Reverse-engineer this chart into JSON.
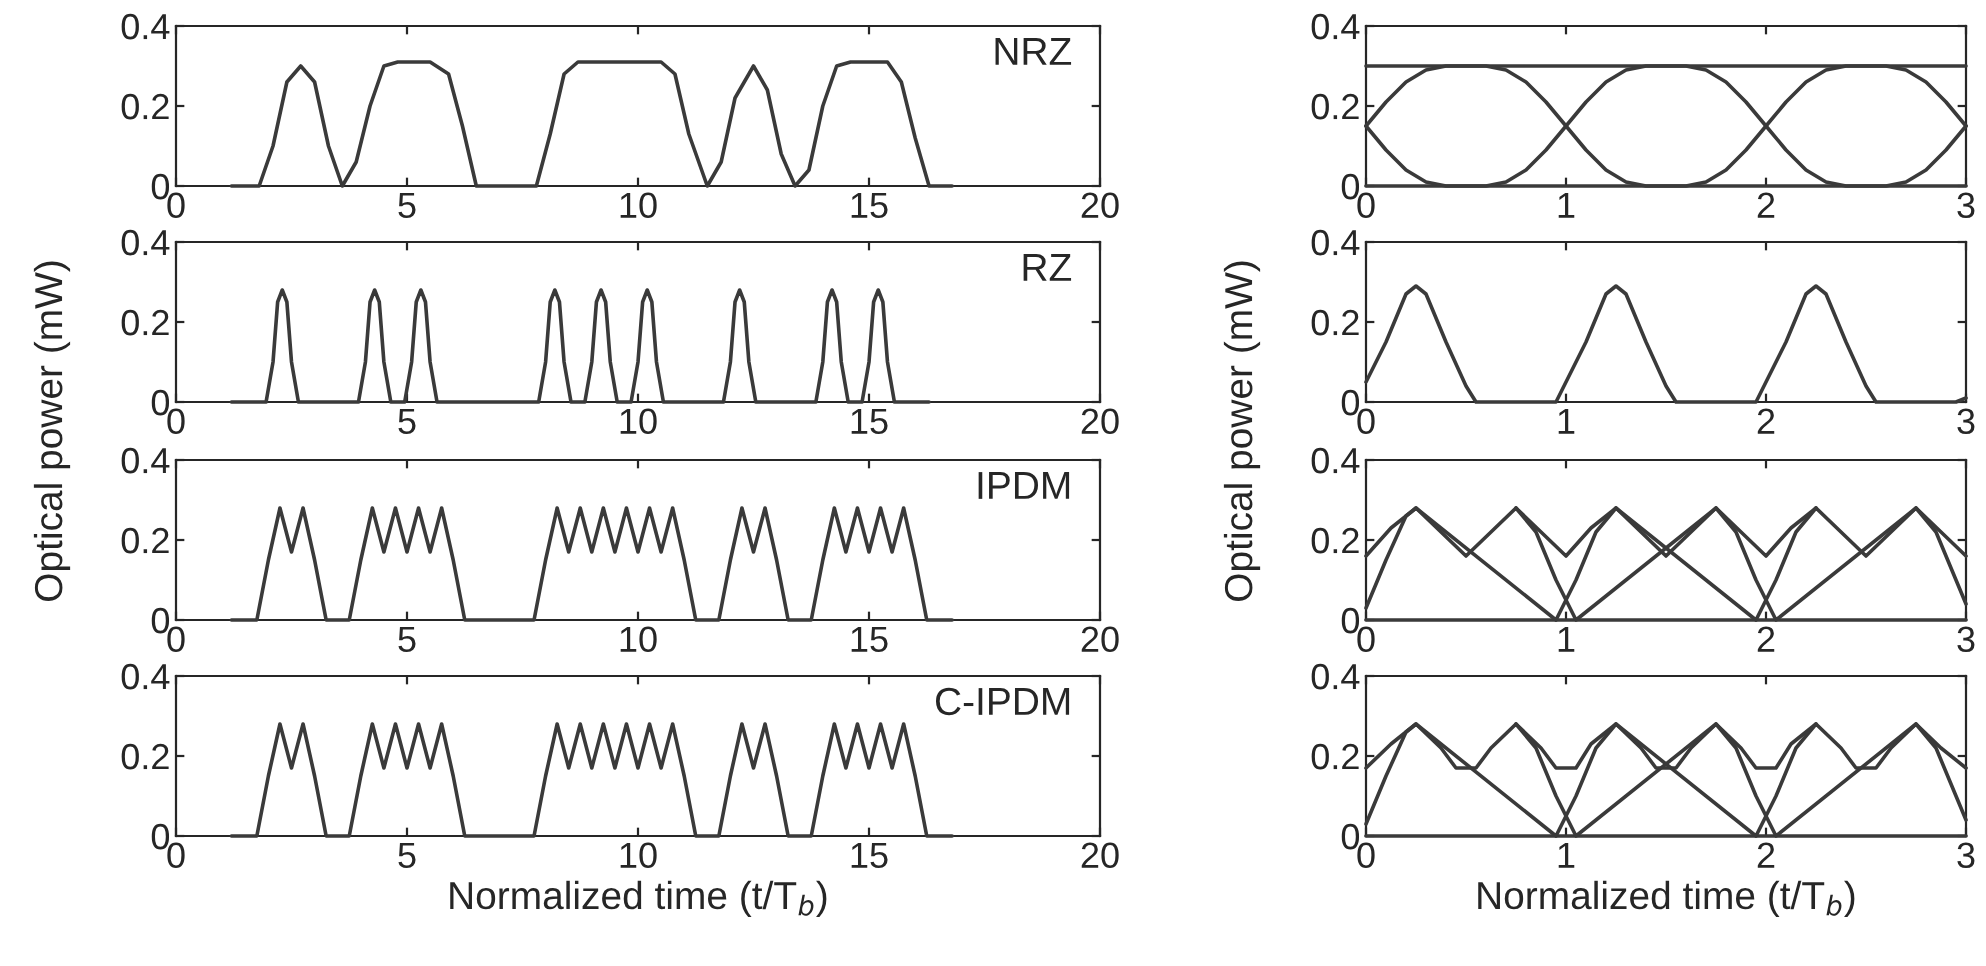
{
  "chart_data": [
    {
      "type": "line",
      "annotations": [
        "NRZ"
      ],
      "ylabel": "Optical power (mW)",
      "xlim": [
        0,
        20
      ],
      "ylim": [
        0,
        0.4
      ],
      "xticks": [
        0,
        5,
        10,
        15,
        20
      ],
      "yticks": [
        0,
        0.2,
        0.4
      ],
      "grid": false,
      "series": [
        {
          "color": "#3a3a3a",
          "x": [
            1.2,
            1.8,
            2.1,
            2.4,
            2.7,
            3.0,
            3.3,
            3.6,
            3.9,
            4.2,
            4.5,
            4.8,
            5.5,
            5.9,
            6.2,
            6.5,
            7.8,
            8.1,
            8.4,
            8.7,
            10.5,
            10.8,
            11.1,
            11.5,
            11.8,
            12.1,
            12.5,
            12.8,
            13.1,
            13.4,
            13.7,
            14.0,
            14.3,
            14.6,
            15.4,
            15.7,
            16.0,
            16.3,
            16.8
          ],
          "values": [
            0,
            0,
            0.1,
            0.26,
            0.3,
            0.26,
            0.1,
            0,
            0.06,
            0.2,
            0.3,
            0.31,
            0.31,
            0.28,
            0.15,
            0,
            0,
            0.13,
            0.28,
            0.31,
            0.31,
            0.28,
            0.13,
            0,
            0.06,
            0.22,
            0.3,
            0.24,
            0.08,
            0,
            0.04,
            0.2,
            0.3,
            0.31,
            0.31,
            0.26,
            0.12,
            0,
            0
          ]
        }
      ]
    },
    {
      "type": "line",
      "annotations": [
        "RZ"
      ],
      "xlim": [
        0,
        20
      ],
      "ylim": [
        0,
        0.4
      ],
      "xticks": [
        0,
        5,
        10,
        15,
        20
      ],
      "yticks": [
        0,
        0.2,
        0.4
      ],
      "grid": false,
      "series": [
        {
          "color": "#3a3a3a",
          "x": [
            1.2,
            1.95,
            2.1,
            2.2,
            2.3,
            2.4,
            2.5,
            2.65,
            3.95,
            4.1,
            4.2,
            4.3,
            4.4,
            4.5,
            4.65,
            4.95,
            5.1,
            5.2,
            5.3,
            5.4,
            5.5,
            5.65,
            7.85,
            8.0,
            8.1,
            8.2,
            8.3,
            8.4,
            8.55,
            8.85,
            9.0,
            9.1,
            9.2,
            9.3,
            9.4,
            9.55,
            9.85,
            10.0,
            10.1,
            10.2,
            10.3,
            10.4,
            10.55,
            11.85,
            12.0,
            12.1,
            12.2,
            12.3,
            12.4,
            12.55,
            13.85,
            14.0,
            14.1,
            14.2,
            14.3,
            14.4,
            14.55,
            14.85,
            15.0,
            15.1,
            15.2,
            15.3,
            15.4,
            15.55,
            16.3
          ],
          "values": [
            0,
            0,
            0.1,
            0.25,
            0.28,
            0.25,
            0.1,
            0,
            0,
            0.1,
            0.25,
            0.28,
            0.25,
            0.1,
            0,
            0,
            0.1,
            0.25,
            0.28,
            0.25,
            0.1,
            0,
            0,
            0.1,
            0.25,
            0.28,
            0.25,
            0.1,
            0,
            0,
            0.1,
            0.25,
            0.28,
            0.25,
            0.1,
            0,
            0,
            0.1,
            0.25,
            0.28,
            0.25,
            0.1,
            0,
            0,
            0.1,
            0.25,
            0.28,
            0.25,
            0.1,
            0,
            0,
            0.1,
            0.25,
            0.28,
            0.25,
            0.1,
            0,
            0,
            0.1,
            0.25,
            0.28,
            0.25,
            0.1,
            0,
            0
          ]
        }
      ]
    },
    {
      "type": "line",
      "annotations": [
        "IPDM"
      ],
      "xlim": [
        0,
        20
      ],
      "ylim": [
        0,
        0.4
      ],
      "xticks": [
        0,
        5,
        10,
        15,
        20
      ],
      "yticks": [
        0,
        0.2,
        0.4
      ],
      "grid": false,
      "series": [
        {
          "color": "#3a3a3a",
          "x": [
            1.2,
            1.75,
            2,
            2.25,
            2.5,
            2.75,
            3,
            3.25,
            3.75,
            4,
            4.25,
            4.5,
            4.75,
            5,
            5.25,
            5.5,
            5.75,
            6,
            6.25,
            7.75,
            8,
            8.25,
            8.5,
            8.75,
            9,
            9.25,
            9.5,
            9.75,
            10,
            10.25,
            10.5,
            10.75,
            11,
            11.25,
            11.75,
            12,
            12.25,
            12.5,
            12.75,
            13,
            13.25,
            13.75,
            14,
            14.25,
            14.5,
            14.75,
            15,
            15.25,
            15.5,
            15.75,
            16,
            16.25,
            16.8
          ],
          "values": [
            0,
            0,
            0.15,
            0.28,
            0.17,
            0.28,
            0.15,
            0,
            0,
            0.15,
            0.28,
            0.17,
            0.28,
            0.17,
            0.28,
            0.17,
            0.28,
            0.15,
            0,
            0,
            0.15,
            0.28,
            0.17,
            0.28,
            0.17,
            0.28,
            0.17,
            0.28,
            0.17,
            0.28,
            0.17,
            0.28,
            0.15,
            0,
            0,
            0.15,
            0.28,
            0.17,
            0.28,
            0.15,
            0,
            0,
            0.15,
            0.28,
            0.17,
            0.28,
            0.17,
            0.28,
            0.17,
            0.28,
            0.15,
            0,
            0
          ]
        }
      ]
    },
    {
      "type": "line",
      "annotations": [
        "C-IPDM"
      ],
      "xlabel": "Normalized time (t/T$_{b}$)",
      "xlim": [
        0,
        20
      ],
      "ylim": [
        0,
        0.4
      ],
      "xticks": [
        0,
        5,
        10,
        15,
        20
      ],
      "yticks": [
        0,
        0.2,
        0.4
      ],
      "grid": false,
      "series": [
        {
          "color": "#3a3a3a",
          "x": [
            1.2,
            1.75,
            2,
            2.25,
            2.5,
            2.75,
            3,
            3.25,
            3.75,
            4,
            4.25,
            4.5,
            4.75,
            5,
            5.25,
            5.5,
            5.75,
            6,
            6.25,
            7.75,
            8,
            8.25,
            8.5,
            8.75,
            9,
            9.25,
            9.5,
            9.75,
            10,
            10.25,
            10.5,
            10.75,
            11,
            11.25,
            11.75,
            12,
            12.25,
            12.5,
            12.75,
            13,
            13.25,
            13.75,
            14,
            14.25,
            14.5,
            14.75,
            15,
            15.25,
            15.5,
            15.75,
            16,
            16.25,
            16.8
          ],
          "values": [
            0,
            0,
            0.15,
            0.28,
            0.17,
            0.28,
            0.15,
            0,
            0,
            0.15,
            0.28,
            0.17,
            0.28,
            0.17,
            0.28,
            0.17,
            0.28,
            0.15,
            0,
            0,
            0.15,
            0.28,
            0.17,
            0.28,
            0.17,
            0.28,
            0.17,
            0.28,
            0.17,
            0.28,
            0.17,
            0.28,
            0.15,
            0,
            0,
            0.15,
            0.28,
            0.17,
            0.28,
            0.15,
            0,
            0,
            0.15,
            0.28,
            0.17,
            0.28,
            0.17,
            0.28,
            0.17,
            0.28,
            0.15,
            0,
            0
          ]
        }
      ]
    },
    {
      "type": "line",
      "ylabel": "Optical power (mW)",
      "xlim": [
        0,
        3
      ],
      "ylim": [
        0,
        0.4
      ],
      "xticks": [
        0,
        1,
        2,
        3
      ],
      "yticks": [
        0,
        0.2,
        0.4
      ],
      "grid": false,
      "series": [
        {
          "color": "#3a3a3a",
          "x": [
            0,
            3
          ],
          "values": [
            0.3,
            0.3
          ]
        },
        {
          "color": "#3a3a3a",
          "x": [
            0,
            3
          ],
          "values": [
            0,
            0
          ]
        },
        {
          "color": "#3a3a3a",
          "x": [
            0,
            0.1,
            0.2,
            0.3,
            0.4,
            0.5,
            0.6,
            0.7,
            0.8,
            0.9,
            1,
            1.1,
            1.2,
            1.3,
            1.4,
            1.5,
            1.6,
            1.7,
            1.8,
            1.9,
            2,
            2.1,
            2.2,
            2.3,
            2.4,
            2.5,
            2.6,
            2.7,
            2.8,
            2.9,
            3
          ],
          "values": [
            0.15,
            0.21,
            0.26,
            0.29,
            0.3,
            0.3,
            0.3,
            0.29,
            0.26,
            0.21,
            0.15,
            0.21,
            0.26,
            0.29,
            0.3,
            0.3,
            0.3,
            0.29,
            0.26,
            0.21,
            0.15,
            0.21,
            0.26,
            0.29,
            0.3,
            0.3,
            0.3,
            0.29,
            0.26,
            0.21,
            0.15
          ]
        },
        {
          "color": "#3a3a3a",
          "x": [
            0,
            0.1,
            0.2,
            0.3,
            0.4,
            0.5,
            0.6,
            0.7,
            0.8,
            0.9,
            1,
            1.1,
            1.2,
            1.3,
            1.4,
            1.5,
            1.6,
            1.7,
            1.8,
            1.9,
            2,
            2.1,
            2.2,
            2.3,
            2.4,
            2.5,
            2.6,
            2.7,
            2.8,
            2.9,
            3
          ],
          "values": [
            0.15,
            0.09,
            0.04,
            0.01,
            0,
            0,
            0,
            0.01,
            0.04,
            0.09,
            0.15,
            0.09,
            0.04,
            0.01,
            0,
            0,
            0,
            0.01,
            0.04,
            0.09,
            0.15,
            0.09,
            0.04,
            0.01,
            0,
            0,
            0,
            0.01,
            0.04,
            0.09,
            0.15
          ]
        }
      ]
    },
    {
      "type": "line",
      "xlim": [
        0,
        3
      ],
      "ylim": [
        0,
        0.4
      ],
      "xticks": [
        0,
        1,
        2,
        3
      ],
      "yticks": [
        0,
        0.2,
        0.4
      ],
      "grid": false,
      "series": [
        {
          "color": "#3a3a3a",
          "x": [
            0,
            0.1,
            0.2,
            0.25,
            0.3,
            0.4,
            0.5,
            0.55,
            0.95,
            1,
            1.1,
            1.2,
            1.25,
            1.3,
            1.4,
            1.5,
            1.55,
            1.95,
            2,
            2.1,
            2.2,
            2.25,
            2.3,
            2.4,
            2.5,
            2.55,
            2.95,
            3
          ],
          "values": [
            0.05,
            0.15,
            0.27,
            0.29,
            0.27,
            0.15,
            0.04,
            0,
            0,
            0.05,
            0.15,
            0.27,
            0.29,
            0.27,
            0.15,
            0.04,
            0,
            0,
            0.05,
            0.15,
            0.27,
            0.29,
            0.27,
            0.15,
            0.04,
            0,
            0,
            0.01
          ]
        }
      ]
    },
    {
      "type": "line",
      "xlim": [
        0,
        3
      ],
      "ylim": [
        0,
        0.4
      ],
      "xticks": [
        0,
        1,
        2,
        3
      ],
      "yticks": [
        0,
        0.2,
        0.4
      ],
      "grid": false,
      "series": [
        {
          "color": "#3a3a3a",
          "x": [
            0,
            0.125,
            0.25,
            0.375,
            0.5,
            0.625,
            0.75,
            0.875,
            1,
            1.125,
            1.25,
            1.375,
            1.5,
            1.625,
            1.75,
            1.875,
            2,
            2.125,
            2.25,
            2.375,
            2.5,
            2.625,
            2.75,
            2.875,
            3
          ],
          "values": [
            0.16,
            0.23,
            0.28,
            0.22,
            0.16,
            0.22,
            0.28,
            0.22,
            0.16,
            0.23,
            0.28,
            0.22,
            0.16,
            0.22,
            0.28,
            0.22,
            0.16,
            0.23,
            0.28,
            0.22,
            0.16,
            0.22,
            0.28,
            0.22,
            0.16
          ]
        },
        {
          "color": "#3a3a3a",
          "x": [
            0,
            3
          ],
          "values": [
            0,
            0
          ]
        },
        {
          "color": "#3a3a3a",
          "x": [
            0,
            0.1,
            0.2,
            0.25,
            0.6,
            0.95,
            1.05,
            1.15,
            1.25,
            1.6,
            1.95,
            2.05,
            2.15,
            2.25
          ],
          "values": [
            0.03,
            0.15,
            0.26,
            0.28,
            null,
            0,
            0.1,
            0.22,
            0.28,
            null,
            0,
            0.1,
            0.22,
            0.28
          ]
        },
        {
          "color": "#3a3a3a",
          "x": [
            0.75,
            0.85,
            0.95,
            1.05,
            1.4,
            1.75,
            1.85,
            1.95,
            2.05,
            2.4,
            2.75,
            2.85,
            2.95,
            3
          ],
          "values": [
            0.28,
            0.22,
            0.1,
            0,
            null,
            0.28,
            0.22,
            0.1,
            0,
            null,
            0.28,
            0.22,
            0.1,
            0.04
          ]
        }
      ]
    },
    {
      "type": "line",
      "xlabel": "Normalized time (t/T$_{b}$)",
      "xlim": [
        0,
        3
      ],
      "ylim": [
        0,
        0.4
      ],
      "xticks": [
        0,
        1,
        2,
        3
      ],
      "yticks": [
        0,
        0.2,
        0.4
      ],
      "grid": false,
      "series": [
        {
          "color": "#3a3a3a",
          "x": [
            0,
            0.125,
            0.25,
            0.375,
            0.45,
            0.55,
            0.625,
            0.75,
            0.875,
            0.95,
            1.05,
            1.125,
            1.25,
            1.375,
            1.45,
            1.55,
            1.625,
            1.75,
            1.875,
            1.95,
            2.05,
            2.125,
            2.25,
            2.375,
            2.45,
            2.55,
            2.625,
            2.75,
            2.875,
            3
          ],
          "values": [
            0.17,
            0.23,
            0.28,
            0.22,
            0.17,
            0.17,
            0.22,
            0.28,
            0.22,
            0.17,
            0.17,
            0.23,
            0.28,
            0.22,
            0.17,
            0.17,
            0.22,
            0.28,
            0.22,
            0.17,
            0.17,
            0.23,
            0.28,
            0.22,
            0.17,
            0.17,
            0.22,
            0.28,
            0.22,
            0.17
          ]
        },
        {
          "color": "#3a3a3a",
          "x": [
            0,
            3
          ],
          "values": [
            0,
            0
          ]
        },
        {
          "color": "#3a3a3a",
          "x": [
            0,
            0.1,
            0.2,
            0.25,
            0.6,
            0.95,
            1.05,
            1.15,
            1.25,
            1.6,
            1.95,
            2.05,
            2.15,
            2.25
          ],
          "values": [
            0.03,
            0.15,
            0.26,
            0.28,
            null,
            0,
            0.1,
            0.22,
            0.28,
            null,
            0,
            0.1,
            0.22,
            0.28
          ]
        },
        {
          "color": "#3a3a3a",
          "x": [
            0.75,
            0.85,
            0.95,
            1.05,
            1.4,
            1.75,
            1.85,
            1.95,
            2.05,
            2.4,
            2.75,
            2.85,
            2.95,
            3
          ],
          "values": [
            0.28,
            0.22,
            0.1,
            0,
            null,
            0.28,
            0.22,
            0.1,
            0,
            null,
            0.28,
            0.22,
            0.1,
            0.04
          ]
        }
      ]
    }
  ]
}
